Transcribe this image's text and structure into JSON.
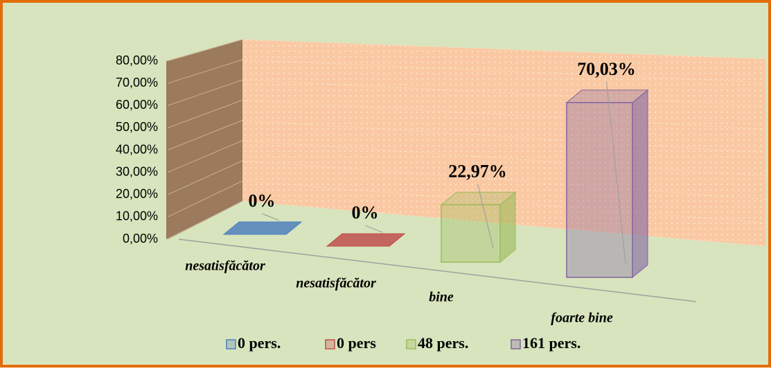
{
  "chart_data": {
    "type": "bar3d",
    "categories": [
      "nesatisfăcător",
      "nesatisfăcător",
      "bine",
      "foarte bine"
    ],
    "series": [
      {
        "name": "0 pers.",
        "color": "#4f81bd",
        "values": [
          0,
          null,
          null,
          null
        ],
        "value_labels": [
          "0%",
          null,
          null,
          null
        ]
      },
      {
        "name": "0 pers",
        "color": "#c0504d",
        "values": [
          null,
          0,
          null,
          null
        ],
        "value_labels": [
          null,
          "0%",
          null,
          null
        ]
      },
      {
        "name": "48 pers.",
        "color": "#9bbb59",
        "values": [
          null,
          null,
          22.97,
          null
        ],
        "value_labels": [
          null,
          null,
          "22,97%",
          null
        ]
      },
      {
        "name": "161 pers.",
        "color": "#8064a2",
        "values": [
          null,
          null,
          null,
          70.03
        ],
        "value_labels": [
          null,
          null,
          null,
          "70,03%"
        ]
      }
    ],
    "ylim": [
      0,
      80
    ],
    "yticks": [
      {
        "value": 0,
        "label": "0,00%"
      },
      {
        "value": 10,
        "label": "10,00%"
      },
      {
        "value": 20,
        "label": "20,00%"
      },
      {
        "value": 30,
        "label": "30,00%"
      },
      {
        "value": 40,
        "label": "40,00%"
      },
      {
        "value": 50,
        "label": "50,00%"
      },
      {
        "value": 60,
        "label": "60,00%"
      },
      {
        "value": 70,
        "label": "70,00%"
      },
      {
        "value": 80,
        "label": "80,00%"
      }
    ],
    "grid": true
  }
}
